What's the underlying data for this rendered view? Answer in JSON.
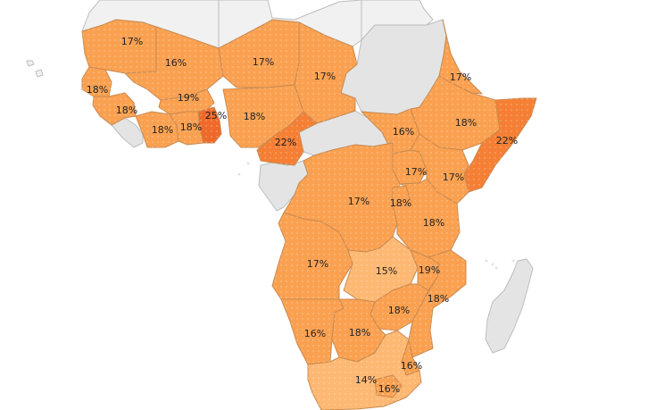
{
  "map": {
    "colors": {
      "ocean": "#ffffff",
      "no_data": "#e4e4e4",
      "no_data_light": "#f1f1f1",
      "low": "#fdb873",
      "mid": "#faa151",
      "high": "#f57f34",
      "highest": "#ef6a2a"
    },
    "regions": [
      {
        "id": "mauritania",
        "value": "17%",
        "level": "mid"
      },
      {
        "id": "mali",
        "value": "16%",
        "level": "mid"
      },
      {
        "id": "niger",
        "value": "17%",
        "level": "mid"
      },
      {
        "id": "chad",
        "value": "17%",
        "level": "mid"
      },
      {
        "id": "senegal",
        "value": "18%",
        "level": "mid"
      },
      {
        "id": "guinea",
        "value": "18%",
        "level": "mid"
      },
      {
        "id": "burkina-faso",
        "value": "19%",
        "level": "mid"
      },
      {
        "id": "ghana",
        "value": "25%",
        "level": "highest"
      },
      {
        "id": "nigeria",
        "value": "18%",
        "level": "mid"
      },
      {
        "id": "cote-divoire",
        "value": "18%",
        "level": "mid"
      },
      {
        "id": "togo-benin",
        "value": "18%",
        "level": "mid"
      },
      {
        "id": "cameroon",
        "value": "22%",
        "level": "high"
      },
      {
        "id": "eritrea",
        "value": "17%",
        "level": "mid"
      },
      {
        "id": "ethiopia",
        "value": "18%",
        "level": "mid"
      },
      {
        "id": "somalia",
        "value": "22%",
        "level": "high"
      },
      {
        "id": "south-sudan",
        "value": "16%",
        "level": "mid"
      },
      {
        "id": "uganda",
        "value": "17%",
        "level": "mid"
      },
      {
        "id": "kenya",
        "value": "17%",
        "level": "mid"
      },
      {
        "id": "dr-congo",
        "value": "17%",
        "level": "mid"
      },
      {
        "id": "rwanda-burundi",
        "value": "18%",
        "level": "mid"
      },
      {
        "id": "tanzania",
        "value": "18%",
        "level": "mid"
      },
      {
        "id": "angola",
        "value": "17%",
        "level": "mid"
      },
      {
        "id": "zambia",
        "value": "15%",
        "level": "low"
      },
      {
        "id": "malawi",
        "value": "19%",
        "level": "mid"
      },
      {
        "id": "mozambique",
        "value": "18%",
        "level": "mid"
      },
      {
        "id": "zimbabwe",
        "value": "18%",
        "level": "mid"
      },
      {
        "id": "namibia",
        "value": "16%",
        "level": "mid"
      },
      {
        "id": "botswana",
        "value": "18%",
        "level": "mid"
      },
      {
        "id": "eswatini",
        "value": "16%",
        "level": "mid"
      },
      {
        "id": "south-africa",
        "value": "14%",
        "level": "low"
      },
      {
        "id": "lesotho",
        "value": "16%",
        "level": "mid"
      }
    ]
  }
}
